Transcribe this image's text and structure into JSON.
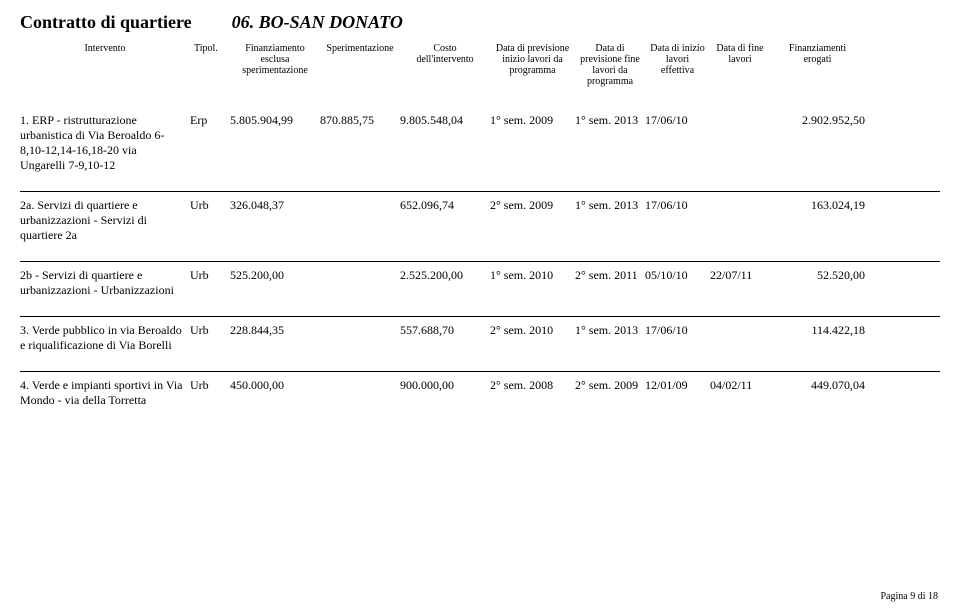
{
  "header": {
    "contract_label": "Contratto di quartiere",
    "contract_name": "06. BO-SAN DONATO"
  },
  "columns": {
    "intervento": "Intervento",
    "tipol": "Tipol.",
    "finanziamento": "Finanziamento esclusa sperimentazione",
    "sperimentazione": "Sperimentazione",
    "costo": "Costo dell'intervento",
    "prev_inizio": "Data di previsione inizio lavori da programma",
    "prev_fine": "Data di previsione fine lavori da programma",
    "data_inizio": "Data di inizio lavori effettiva",
    "data_fine": "Data di fine lavori",
    "erogati": "Finanziamenti erogati"
  },
  "rows": [
    {
      "intervento": "1. ERP - ristrutturazione urbanistica di Via Beroaldo 6-8,10-12,14-16,18-20 via Ungarelli 7-9,10-12",
      "tipol": "Erp",
      "finanz": "5.805.904,99",
      "sperim": "870.885,75",
      "costo": "9.805.548,04",
      "prev_i": "1° sem. 2009",
      "prev_f": "1° sem. 2013",
      "data_i": "17/06/10",
      "data_f": "",
      "erogati": "2.902.952,50"
    },
    {
      "intervento": "2a. Servizi di quartiere e urbanizzazioni - Servizi di quartiere 2a",
      "tipol": "Urb",
      "finanz": "326.048,37",
      "sperim": "",
      "costo": "652.096,74",
      "prev_i": "2° sem. 2009",
      "prev_f": "1° sem. 2013",
      "data_i": "17/06/10",
      "data_f": "",
      "erogati": "163.024,19"
    },
    {
      "intervento": "2b - Servizi di quartiere e urbanizzazioni - Urbanizzazioni",
      "tipol": "Urb",
      "finanz": "525.200,00",
      "sperim": "",
      "costo": "2.525.200,00",
      "prev_i": "1° sem. 2010",
      "prev_f": "2° sem. 2011",
      "data_i": "05/10/10",
      "data_f": "22/07/11",
      "erogati": "52.520,00"
    },
    {
      "intervento": "3. Verde pubblico in via Beroaldo e riqualificazione di Via Borelli",
      "tipol": "Urb",
      "finanz": "228.844,35",
      "sperim": "",
      "costo": "557.688,70",
      "prev_i": "2° sem. 2010",
      "prev_f": "1° sem. 2013",
      "data_i": "17/06/10",
      "data_f": "",
      "erogati": "114.422,18"
    },
    {
      "intervento": "4. Verde e impianti sportivi in Via Mondo - via della Torretta",
      "tipol": "Urb",
      "finanz": "450.000,00",
      "sperim": "",
      "costo": "900.000,00",
      "prev_i": "2° sem. 2008",
      "prev_f": "2° sem. 2009",
      "data_i": "12/01/09",
      "data_f": "04/02/11",
      "erogati": "449.070,04"
    }
  ],
  "footer": {
    "page": "Pagina 9 di 18"
  }
}
